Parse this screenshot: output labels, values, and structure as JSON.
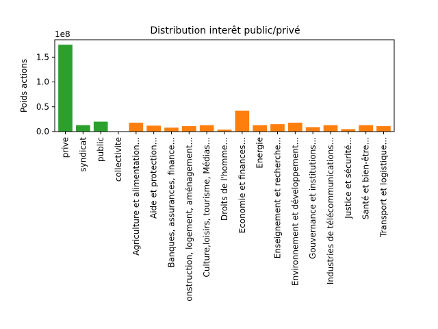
{
  "chart_data": {
    "type": "bar",
    "title": "Distribution interêt public/privé",
    "xlabel": "",
    "ylabel": "Poids actions",
    "y_scale_label": "1e8",
    "ylim": [
      0,
      1.85
    ],
    "y_ticks": [
      0.0,
      0.5,
      1.0,
      1.5
    ],
    "y_tick_labels": [
      "0.0",
      "0.5",
      "1.0",
      "1.5"
    ],
    "grid": false,
    "categories": [
      "prive",
      "syndicat",
      "public",
      "collectivite",
      "Agriculture et alimentation...",
      "Aide et protection...",
      "Banques, assurances, finance...",
      "onstruction, logement, aménagement...",
      "Culture,loisirs, tourisme, Médias...",
      "Droits de l'homme...",
      "Economie et finances...",
      "Energie",
      "Enseignement et recherche...",
      "Environnement et développement...",
      "Gouvernance et institutions...",
      "Industries de télécommunications...",
      "Justice et sécurité...",
      "Santé et bien-être...",
      "Transport et logistique..."
    ],
    "values": [
      1.75,
      0.13,
      0.2,
      0.0,
      0.18,
      0.12,
      0.08,
      0.11,
      0.13,
      0.04,
      0.42,
      0.13,
      0.15,
      0.18,
      0.09,
      0.13,
      0.05,
      0.13,
      0.11
    ],
    "bar_colors": [
      "#2ca02c",
      "#2ca02c",
      "#2ca02c",
      "#2ca02c",
      "#ff7f0e",
      "#ff7f0e",
      "#ff7f0e",
      "#ff7f0e",
      "#ff7f0e",
      "#ff7f0e",
      "#ff7f0e",
      "#ff7f0e",
      "#ff7f0e",
      "#ff7f0e",
      "#ff7f0e",
      "#ff7f0e",
      "#ff7f0e",
      "#ff7f0e",
      "#ff7f0e"
    ]
  }
}
